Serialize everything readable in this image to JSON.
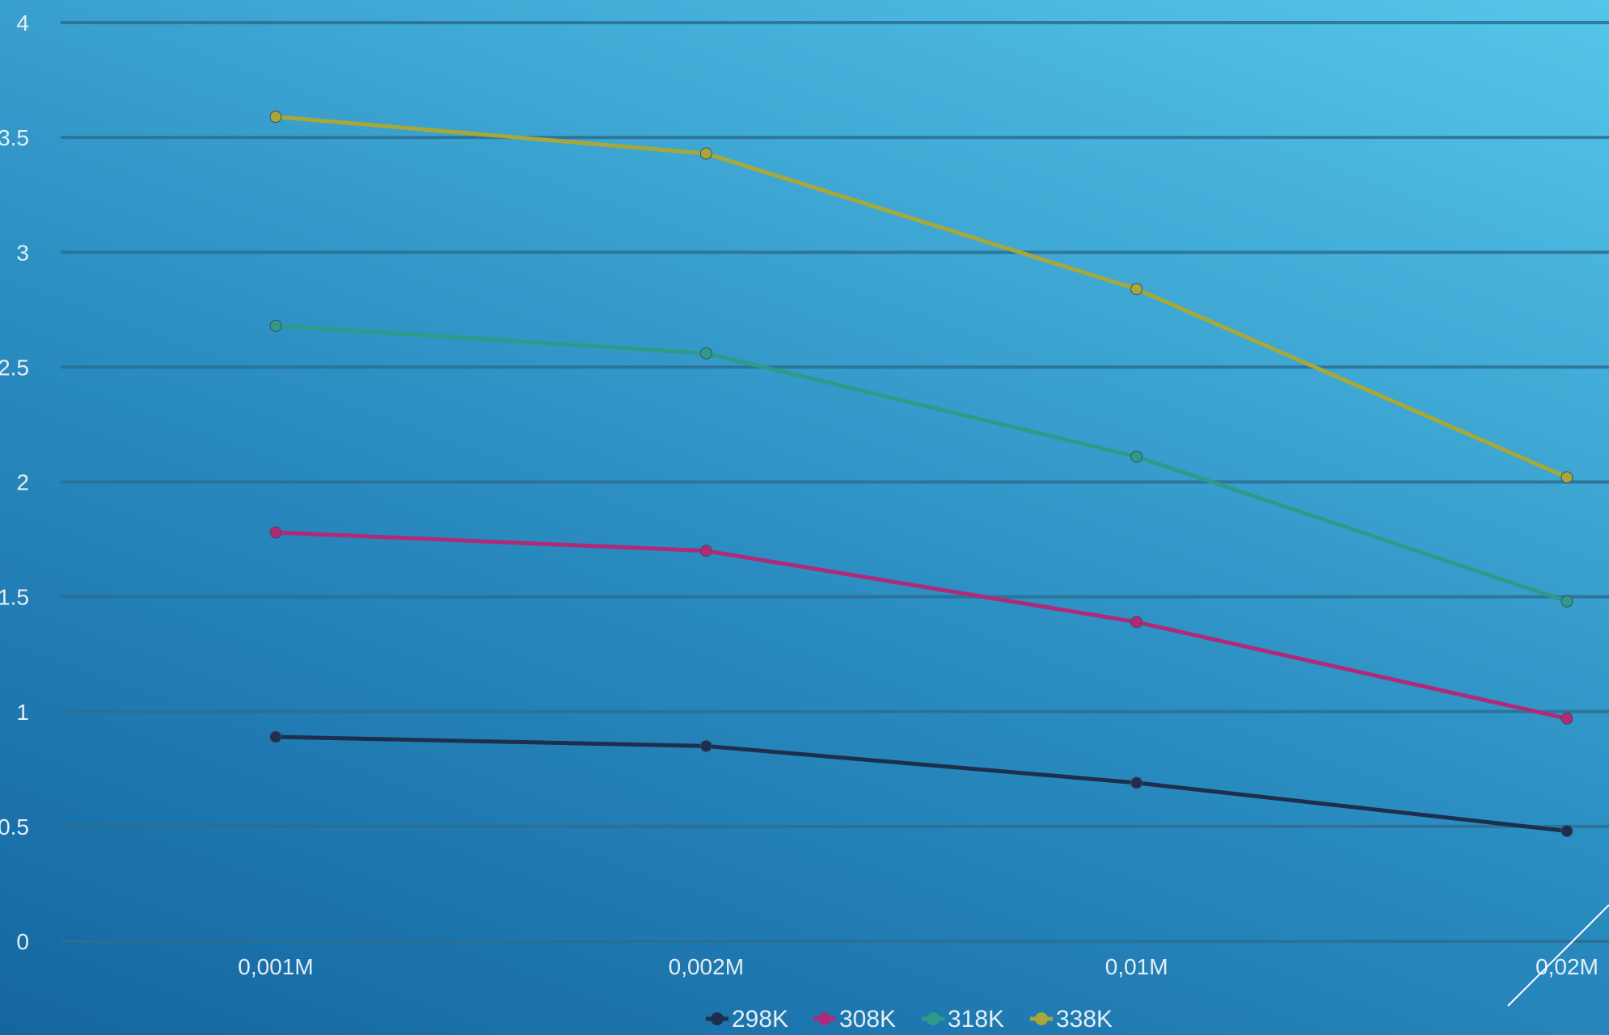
{
  "chart_data": {
    "type": "line",
    "title": "",
    "xlabel": "",
    "ylabel": "",
    "categories": [
      "0,001M",
      "0,002M",
      "0,01M",
      "0,02M"
    ],
    "y_ticks": [
      "0",
      "0.5",
      "1",
      "1.5",
      "2",
      "2.5",
      "3",
      "3.5",
      "4"
    ],
    "ylim": [
      0,
      4
    ],
    "grid": true,
    "legend_position": "bottom",
    "series": [
      {
        "name": "298K",
        "color": "#1c2f4e",
        "values": [
          0.89,
          0.85,
          0.69,
          0.48
        ]
      },
      {
        "name": "308K",
        "color": "#b02a78",
        "values": [
          1.78,
          1.7,
          1.39,
          0.97
        ]
      },
      {
        "name": "318K",
        "color": "#2f9a8a",
        "values": [
          2.68,
          2.56,
          2.11,
          1.48
        ]
      },
      {
        "name": "338K",
        "color": "#a8a83a",
        "values": [
          3.59,
          3.43,
          2.84,
          2.02
        ]
      }
    ]
  }
}
